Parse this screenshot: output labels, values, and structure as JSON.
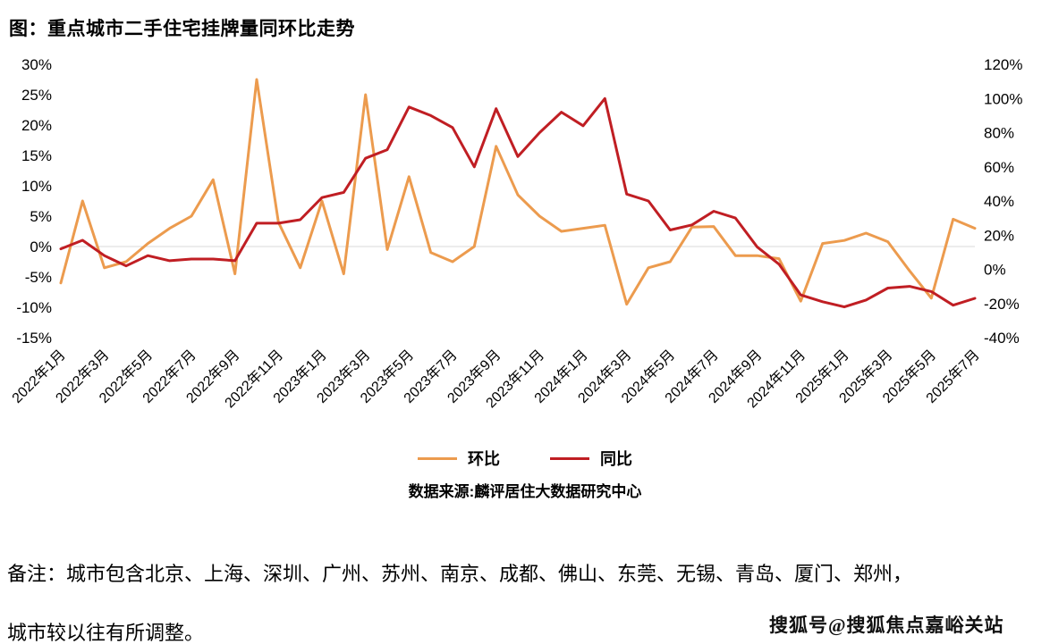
{
  "chart": {
    "title": "图：重点城市二手住宅挂牌量同环比走势",
    "source": "数据来源:麟评居住大数据研究中心",
    "legend": [
      {
        "label": "环比",
        "color": "#EC9B4E"
      },
      {
        "label": "同比",
        "color": "#C01E23"
      }
    ]
  },
  "chart_data": {
    "type": "line",
    "title": "图：重点城市二手住宅挂牌量同环比走势",
    "x": [
      "2022年1月",
      "2022年2月",
      "2022年3月",
      "2022年4月",
      "2022年5月",
      "2022年6月",
      "2022年7月",
      "2022年8月",
      "2022年9月",
      "2022年10月",
      "2022年11月",
      "2022年12月",
      "2023年1月",
      "2023年2月",
      "2023年3月",
      "2023年4月",
      "2023年5月",
      "2023年6月",
      "2023年7月",
      "2023年8月",
      "2023年9月",
      "2023年10月",
      "2023年11月",
      "2023年12月",
      "2024年1月",
      "2024年2月",
      "2024年3月",
      "2024年4月",
      "2024年5月",
      "2024年6月",
      "2024年7月",
      "2024年8月",
      "2024年9月",
      "2024年10月",
      "2024年11月",
      "2024年12月",
      "2025年1月",
      "2025年2月",
      "2025年3月",
      "2025年4月",
      "2025年5月",
      "2025年6月",
      "2025年7月"
    ],
    "x_tick_labels": [
      "2022年1月",
      "2022年3月",
      "2022年5月",
      "2022年7月",
      "2022年9月",
      "2022年11月",
      "2023年1月",
      "2023年3月",
      "2023年5月",
      "2023年7月",
      "2023年9月",
      "2023年11月",
      "2024年1月",
      "2024年3月",
      "2024年5月",
      "2024年7月",
      "2024年9月",
      "2024年11月",
      "2025年1月",
      "2025年3月",
      "2025年5月",
      "2025年7月"
    ],
    "left_axis": {
      "min": -15,
      "max": 30,
      "step": 5,
      "tick_labels": [
        "30%",
        "25%",
        "20%",
        "15%",
        "10%",
        "5%",
        "0%",
        "-5%",
        "-10%",
        "-15%"
      ]
    },
    "right_axis": {
      "min": -40,
      "max": 120,
      "step": 20,
      "tick_labels": [
        "120%",
        "100%",
        "80%",
        "60%",
        "40%",
        "20%",
        "0%",
        "-20%",
        "-40%"
      ]
    },
    "grid": "zero-line-only",
    "legend_position": "bottom-center",
    "series": [
      {
        "name": "环比",
        "axis": "left",
        "color": "#EC9B4E",
        "values": [
          -6,
          7.5,
          -3.5,
          -2.5,
          0.5,
          3,
          5,
          11,
          -4.5,
          27.5,
          4,
          -3.5,
          7.5,
          -4.5,
          25,
          -0.5,
          11.5,
          -1,
          -2.5,
          0,
          16.5,
          8.5,
          5,
          2.5,
          3,
          3.5,
          -9.5,
          -3.5,
          -2.5,
          3.2,
          3.3,
          -1.5,
          -1.5,
          -2,
          -9,
          0.5,
          1,
          2.2,
          0.8,
          -4,
          -8.5,
          4.5,
          3
        ]
      },
      {
        "name": "同比",
        "axis": "right",
        "color": "#C01E23",
        "values": [
          12,
          17,
          8,
          2,
          8,
          5,
          6,
          6,
          5,
          27,
          27,
          29,
          42,
          45,
          65,
          70,
          95,
          90,
          83,
          60,
          94,
          66,
          80,
          92,
          84,
          100,
          44,
          40,
          23,
          26,
          34,
          30,
          13,
          3,
          -15,
          -19,
          -22,
          -18,
          -11,
          -10,
          -13,
          -21,
          -17
        ]
      }
    ]
  },
  "note": {
    "line1": "备注：城市包含北京、上海、深圳、广州、苏州、南京、成都、佛山、东莞、无锡、青岛、厦门、郑州，",
    "line2": "城市较以往有所调整。"
  },
  "watermark": "搜狐号@搜狐焦点嘉峪关站"
}
